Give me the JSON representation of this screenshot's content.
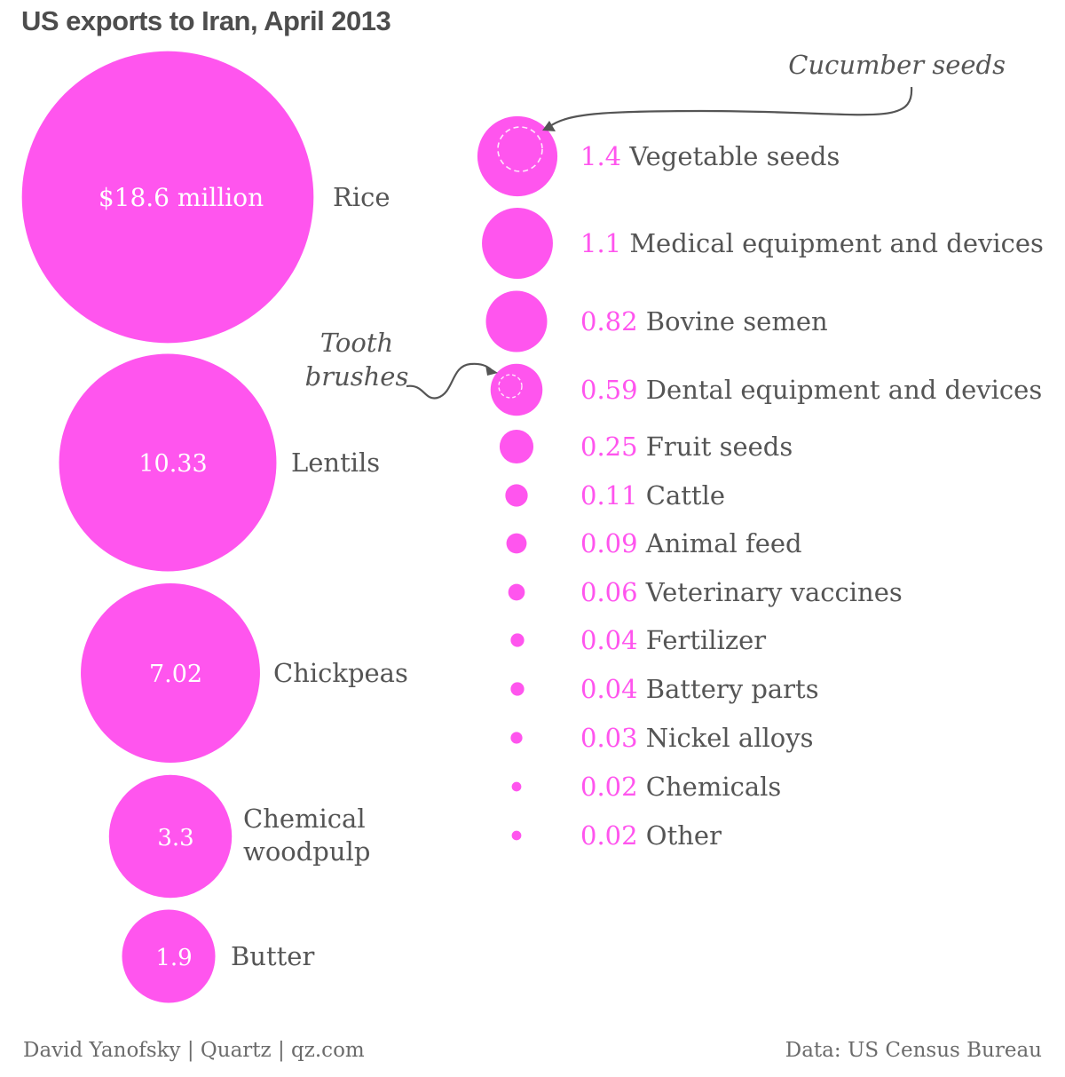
{
  "title": "US exports to Iran, April 2013",
  "footer": {
    "credit": "David Yanofsky | Quartz | qz.com",
    "source": "Data: US Census Bureau"
  },
  "colors": {
    "bubble": "#ff55ee",
    "value_text": "#ff55ee",
    "label_text": "#555555",
    "inner_text": "#ffffff",
    "annotation": "#555555"
  },
  "chart_data": {
    "type": "bubble",
    "unit": "$ million",
    "title": "US exports to Iran, April 2013",
    "large_items": [
      {
        "label": "Rice",
        "value": 18.6,
        "value_label": "$18.6 million"
      },
      {
        "label": "Lentils",
        "value": 10.33,
        "value_label": "10.33"
      },
      {
        "label": "Chickpeas",
        "value": 7.02,
        "value_label": "7.02"
      },
      {
        "label": "Chemical woodpulp",
        "label_lines": [
          "Chemical",
          "woodpulp"
        ],
        "value": 3.3,
        "value_label": "3.3"
      },
      {
        "label": "Butter",
        "value": 1.9,
        "value_label": "1.9"
      }
    ],
    "small_items": [
      {
        "label": "Vegetable seeds",
        "value": 1.4,
        "value_label": "1.4"
      },
      {
        "label": "Medical equipment and devices",
        "value": 1.1,
        "value_label": "1.1"
      },
      {
        "label": "Bovine semen",
        "value": 0.82,
        "value_label": "0.82"
      },
      {
        "label": "Dental equipment and devices",
        "value": 0.59,
        "value_label": "0.59"
      },
      {
        "label": "Fruit seeds",
        "value": 0.25,
        "value_label": "0.25"
      },
      {
        "label": "Cattle",
        "value": 0.11,
        "value_label": "0.11"
      },
      {
        "label": "Animal feed",
        "value": 0.09,
        "value_label": "0.09"
      },
      {
        "label": "Veterinary vaccines",
        "value": 0.06,
        "value_label": "0.06"
      },
      {
        "label": "Fertilizer",
        "value": 0.04,
        "value_label": "0.04"
      },
      {
        "label": "Battery parts",
        "value": 0.04,
        "value_label": "0.04"
      },
      {
        "label": "Nickel alloys",
        "value": 0.03,
        "value_label": "0.03"
      },
      {
        "label": "Chemicals",
        "value": 0.02,
        "value_label": "0.02"
      },
      {
        "label": "Other",
        "value": 0.02,
        "value_label": "0.02"
      }
    ],
    "annotations": [
      {
        "text": "Cucumber seeds",
        "target": "Vegetable seeds"
      },
      {
        "text_lines": [
          "Tooth",
          "brushes"
        ],
        "target": "Dental equipment and devices"
      }
    ]
  }
}
